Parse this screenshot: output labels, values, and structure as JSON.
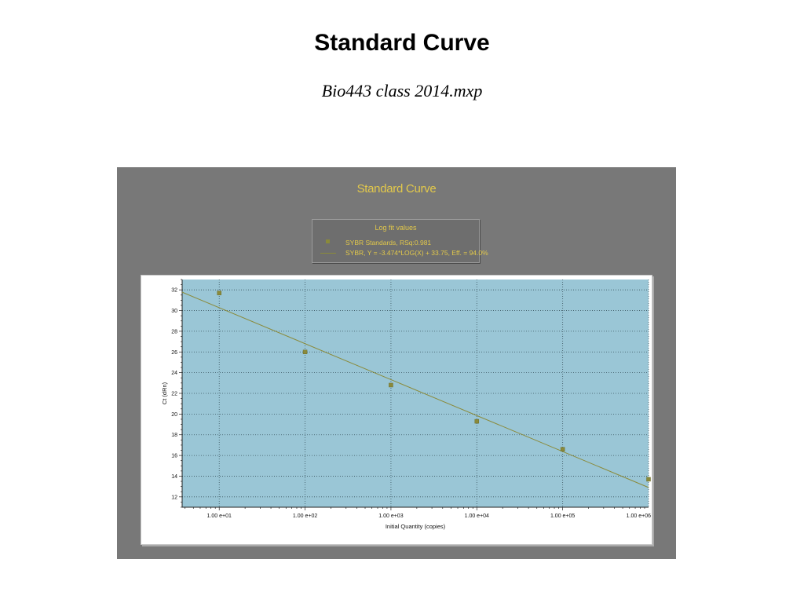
{
  "page": {
    "title": "Standard Curve",
    "subtitle": "Bio443 class 2014.mxp"
  },
  "colors": {
    "panel_bg": "#787878",
    "plot_bg": "#9ac6d6",
    "title_text": "#e3c94a",
    "series": "#8a8a3a"
  },
  "chart_data": {
    "type": "scatter",
    "title": "Standard Curve",
    "legend": {
      "title": "Log fit values",
      "entries": [
        "SYBR Standards, RSq:0.981",
        "SYBR, Y = -3.474*LOG(X) + 33.75, Eff. = 94.0%"
      ],
      "position": "top-center"
    },
    "xlabel": "Initial Quantity (copies)",
    "ylabel": "Ct (dRn)",
    "x_scale": "log",
    "xlim": [
      3.7,
      1000000
    ],
    "ylim": [
      11,
      33
    ],
    "grid": true,
    "x_ticks": [
      10,
      100,
      1000,
      10000,
      100000,
      1000000
    ],
    "x_tick_labels": [
      "1.00 e+01",
      "1.00 e+02",
      "1.00 e+03",
      "1.00 e+04",
      "1.00 e+05",
      "1.00 e+06"
    ],
    "y_ticks": [
      12,
      14,
      16,
      18,
      20,
      22,
      24,
      26,
      28,
      30,
      32
    ],
    "series": [
      {
        "name": "SYBR Standards",
        "x": [
          10,
          100,
          1000,
          10000,
          100000,
          1000000
        ],
        "y": [
          31.7,
          26.0,
          22.8,
          19.3,
          16.6,
          13.7
        ]
      }
    ],
    "fit": {
      "slope": -3.474,
      "intercept": 33.75,
      "x_range": [
        3.7,
        1000000
      ]
    }
  }
}
